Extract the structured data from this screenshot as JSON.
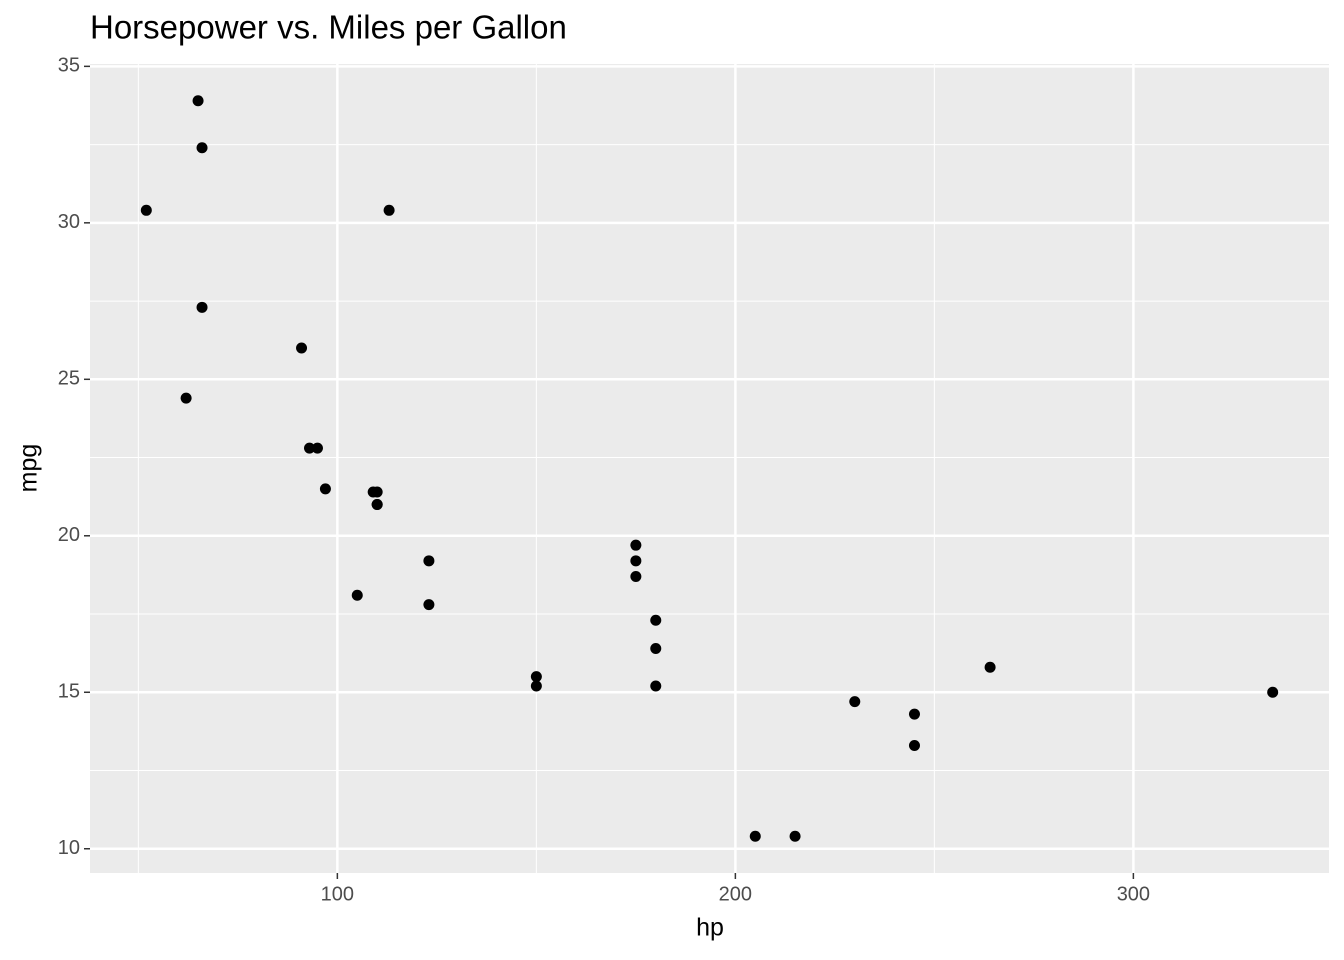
{
  "chart_data": {
    "type": "scatter",
    "title": "Horsepower vs. Miles per Gallon",
    "x_label": "hp",
    "y_label": "mpg",
    "x": [
      110,
      110,
      93,
      110,
      175,
      105,
      245,
      62,
      95,
      123,
      123,
      180,
      180,
      180,
      205,
      215,
      230,
      66,
      52,
      65,
      97,
      150,
      150,
      245,
      175,
      66,
      91,
      113,
      264,
      175,
      335,
      109
    ],
    "values": [
      21.0,
      21.0,
      22.8,
      21.4,
      18.7,
      18.1,
      14.3,
      24.4,
      22.8,
      19.2,
      17.8,
      16.4,
      17.3,
      15.2,
      10.4,
      10.4,
      14.7,
      32.4,
      30.4,
      33.9,
      21.5,
      15.5,
      15.2,
      13.3,
      19.2,
      27.3,
      26.0,
      30.4,
      15.8,
      19.7,
      15.0,
      21.4
    ],
    "color": "#000000",
    "xlim": [
      37.85,
      349.15
    ],
    "ylim": [
      9.225,
      35.075
    ],
    "xticks": [
      100,
      200,
      300
    ],
    "yticks": [
      10,
      15,
      20,
      25,
      30,
      35
    ],
    "x_minor_ticks": [
      50,
      150,
      250
    ],
    "y_minor_ticks": [
      12.5,
      17.5,
      22.5,
      27.5,
      32.5
    ],
    "grid": true,
    "panel_color": "#ebebeb"
  }
}
